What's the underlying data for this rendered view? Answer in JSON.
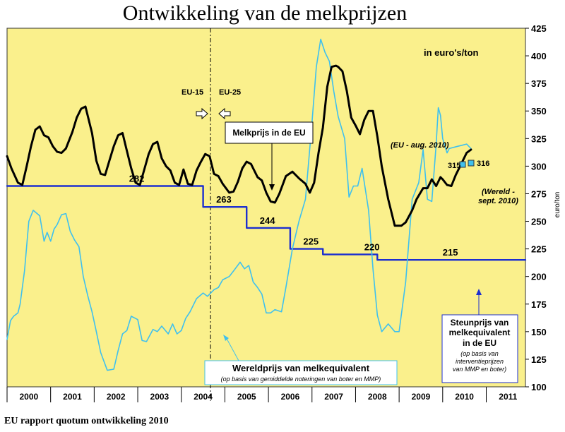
{
  "title": "Ontwikkeling van de melkprijzen",
  "footer": "EU rapport quotum ontwikkeling 2010",
  "chart_data": {
    "type": "line",
    "unit_label": "in euro's/ton",
    "ylabel": "euro/ton",
    "ylim": [
      100,
      425
    ],
    "yticks": [
      100,
      125,
      150,
      175,
      200,
      225,
      250,
      275,
      300,
      325,
      350,
      375,
      400,
      425
    ],
    "xlim": [
      2000,
      2011.9
    ],
    "xticks": [
      "2000",
      "2001",
      "2002",
      "2003",
      "2004",
      "2005",
      "2006",
      "2007",
      "2008",
      "2009",
      "2010",
      "2011"
    ],
    "grid": false,
    "background": "#FAF08C",
    "series": [
      {
        "name": "Melkprijs in de EU",
        "color": "#000000",
        "x": [
          2000.0,
          2000.1,
          2000.25,
          2000.35,
          2000.45,
          2000.55,
          2000.65,
          2000.75,
          2000.85,
          2000.95,
          2001.05,
          2001.15,
          2001.25,
          2001.35,
          2001.5,
          2001.6,
          2001.7,
          2001.8,
          2001.95,
          2002.05,
          2002.15,
          2002.25,
          2002.35,
          2002.45,
          2002.55,
          2002.65,
          2002.75,
          2002.85,
          2002.95,
          2003.05,
          2003.15,
          2003.25,
          2003.35,
          2003.45,
          2003.55,
          2003.65,
          2003.75,
          2003.85,
          2003.95,
          2004.05,
          2004.15,
          2004.25,
          2004.35,
          2004.45,
          2004.55,
          2004.65,
          2004.75,
          2004.85,
          2004.95,
          2005.1,
          2005.2,
          2005.3,
          2005.4,
          2005.5,
          2005.6,
          2005.75,
          2005.85,
          2005.95,
          2006.05,
          2006.15,
          2006.25,
          2006.4,
          2006.55,
          2006.7,
          2006.85,
          2006.95,
          2007.05,
          2007.15,
          2007.25,
          2007.35,
          2007.45,
          2007.55,
          2007.6,
          2007.7,
          2007.8,
          2007.9,
          2008.0,
          2008.1,
          2008.2,
          2008.3,
          2008.4,
          2008.5,
          2008.6,
          2008.75,
          2008.9,
          2009.05,
          2009.15,
          2009.3,
          2009.4,
          2009.55,
          2009.65,
          2009.75,
          2009.85,
          2009.95,
          2010.0,
          2010.1,
          2010.2,
          2010.3,
          2010.4,
          2010.55,
          2010.65
        ],
        "y": [
          309,
          298,
          285,
          283,
          300,
          318,
          333,
          336,
          328,
          326,
          318,
          313,
          312,
          316,
          331,
          344,
          352,
          354,
          330,
          305,
          293,
          292,
          305,
          318,
          328,
          330,
          314,
          298,
          285,
          283,
          297,
          311,
          320,
          322,
          307,
          300,
          296,
          285,
          283,
          297,
          284,
          283,
          296,
          304,
          311,
          309,
          293,
          291,
          284,
          276,
          277,
          286,
          298,
          304,
          302,
          290,
          287,
          276,
          268,
          267,
          275,
          291,
          295,
          289,
          284,
          276,
          285,
          312,
          335,
          372,
          390,
          391,
          390,
          386,
          368,
          344,
          337,
          329,
          342,
          350,
          350,
          327,
          300,
          270,
          246,
          246,
          249,
          260,
          270,
          280,
          280,
          288,
          282,
          290,
          288,
          283,
          282,
          292,
          300,
          312,
          315
        ]
      },
      {
        "name": "Wereldprijs van melkequivalent",
        "color": "#3FC0EE",
        "x": [
          2000.0,
          2000.08,
          2000.15,
          2000.25,
          2000.3,
          2000.4,
          2000.5,
          2000.6,
          2000.75,
          2000.85,
          2000.92,
          2001.0,
          2001.08,
          2001.15,
          2001.25,
          2001.35,
          2001.45,
          2001.55,
          2001.65,
          2001.75,
          2001.85,
          2001.95,
          2002.05,
          2002.15,
          2002.3,
          2002.45,
          2002.55,
          2002.65,
          2002.75,
          2002.85,
          2003.0,
          2003.1,
          2003.2,
          2003.35,
          2003.45,
          2003.55,
          2003.7,
          2003.8,
          2003.9,
          2004.0,
          2004.1,
          2004.2,
          2004.35,
          2004.5,
          2004.6,
          2004.75,
          2004.85,
          2004.95,
          2005.1,
          2005.2,
          2005.35,
          2005.45,
          2005.55,
          2005.65,
          2005.75,
          2005.85,
          2005.95,
          2006.05,
          2006.15,
          2006.3,
          2006.4,
          2006.55,
          2006.7,
          2006.85,
          2007.0,
          2007.1,
          2007.2,
          2007.3,
          2007.4,
          2007.5,
          2007.6,
          2007.75,
          2007.85,
          2007.95,
          2008.05,
          2008.15,
          2008.3,
          2008.4,
          2008.5,
          2008.6,
          2008.75,
          2008.9,
          2009.0,
          2009.15,
          2009.3,
          2009.45,
          2009.55,
          2009.65,
          2009.75,
          2009.85,
          2009.9,
          2009.95,
          2010.0,
          2010.1,
          2010.15,
          2010.25,
          2010.35,
          2010.45,
          2010.55,
          2010.65
        ],
        "y": [
          143,
          160,
          164,
          167,
          175,
          205,
          250,
          260,
          255,
          232,
          240,
          232,
          243,
          247,
          256,
          257,
          241,
          233,
          227,
          200,
          183,
          168,
          150,
          131,
          115,
          116,
          133,
          148,
          151,
          164,
          161,
          142,
          141,
          152,
          150,
          155,
          148,
          157,
          148,
          151,
          162,
          168,
          180,
          185,
          182,
          188,
          190,
          197,
          200,
          205,
          213,
          207,
          210,
          195,
          190,
          184,
          167,
          167,
          170,
          168,
          190,
          225,
          250,
          270,
          340,
          390,
          415,
          403,
          395,
          368,
          345,
          325,
          272,
          282,
          282,
          298,
          260,
          207,
          165,
          150,
          157,
          150,
          150,
          195,
          270,
          285,
          315,
          270,
          268,
          320,
          353,
          346,
          325,
          312,
          316,
          317,
          318,
          319,
          320,
          316
        ]
      },
      {
        "name": "Steunprijs van melkequivalent",
        "color": "#1C2FD0",
        "step": true,
        "x": [
          2000.0,
          2004.5,
          2004.5,
          2005.5,
          2005.5,
          2006.5,
          2006.5,
          2007.25,
          2007.25,
          2008.5,
          2008.5,
          2011.9
        ],
        "y": [
          282,
          282,
          263,
          263,
          244,
          244,
          225,
          225,
          220,
          220,
          215,
          215
        ]
      }
    ],
    "support_labels": [
      {
        "text": "282",
        "x": 2002.8,
        "y": 282
      },
      {
        "text": "263",
        "x": 2004.8,
        "y": 263
      },
      {
        "text": "244",
        "x": 2005.8,
        "y": 244
      },
      {
        "text": "225",
        "x": 2006.8,
        "y": 225
      },
      {
        "text": "220",
        "x": 2008.2,
        "y": 220
      },
      {
        "text": "215",
        "x": 2010.0,
        "y": 215
      }
    ],
    "value_labels": [
      "315",
      "316"
    ],
    "annotations": {
      "eu15": "EU-15",
      "eu25": "EU-25",
      "eu_box": "Melkprijs in de EU",
      "eu_note": "(EU - aug. 2010)",
      "world_note_1": "(Wereld -",
      "world_note_2": "sept. 2010)",
      "world_box_title": "Wereldprijs van melkequivalent",
      "world_box_sub": "(op basis van gemiddelde noteringen van boter en MMP)",
      "support_box_1": "Steunprijs van",
      "support_box_2": "melkequivalent",
      "support_box_3": "in de EU",
      "support_box_4": "(op basis van",
      "support_box_5": "interventieprijzen",
      "support_box_6": "van MMP en boter)"
    }
  }
}
